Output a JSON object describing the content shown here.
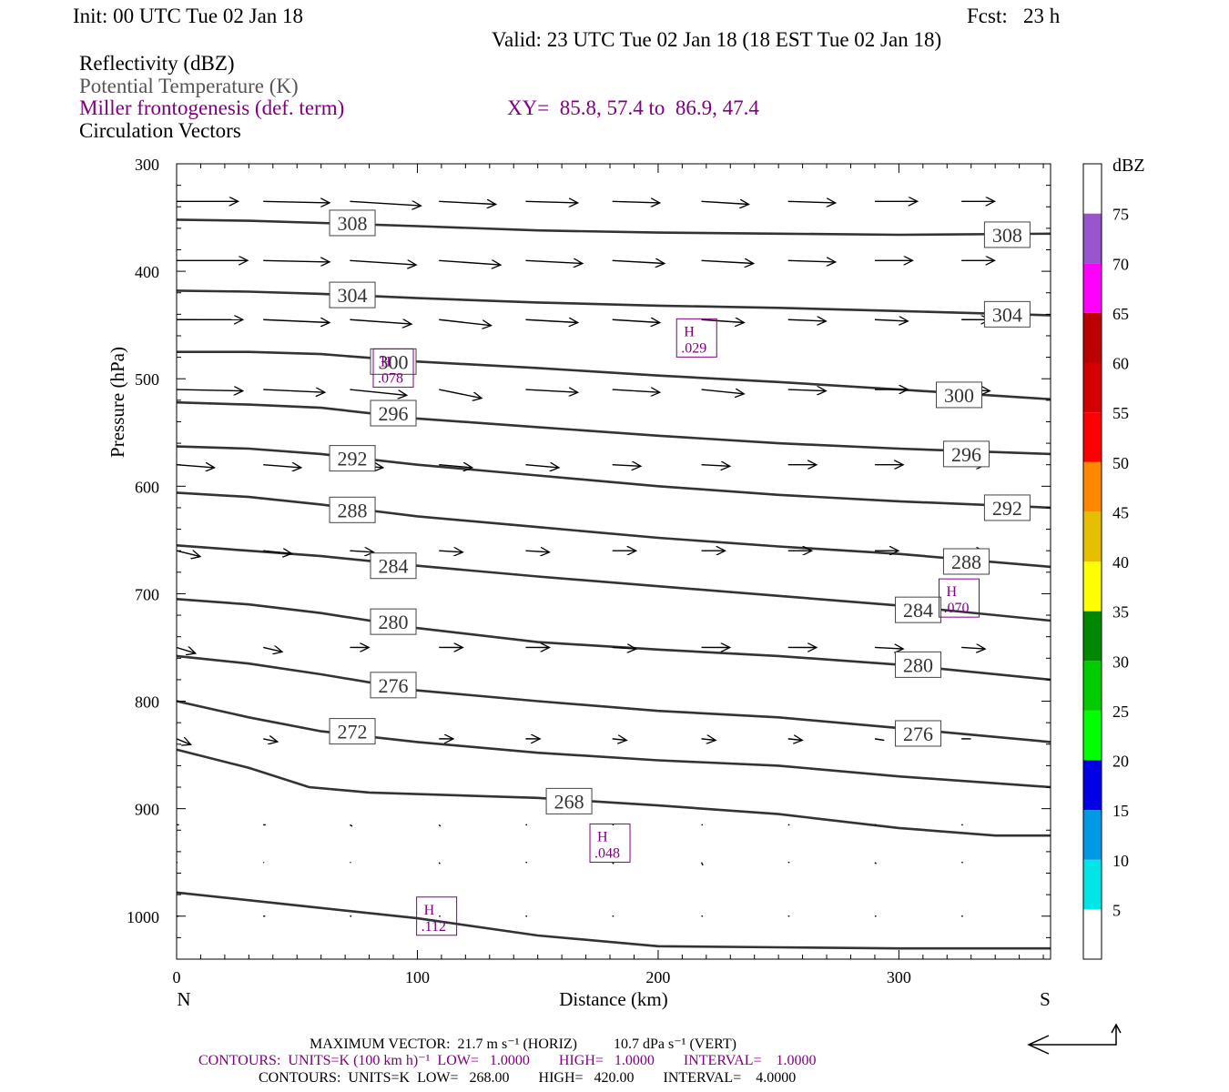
{
  "header": {
    "init": "Init: 00 UTC Tue 02 Jan 18",
    "fcst": "Fcst:   23 h",
    "valid": "Valid: 23 UTC Tue 02 Jan 18 (18 EST Tue 02 Jan 18)",
    "field1": "Reflectivity (dBZ)",
    "field2": "Potential Temperature (K)",
    "field3": "Miller frontogenesis (def. term)",
    "xy": "XY=  85.8, 57.4 to  86.9, 47.4",
    "field4": "Circulation Vectors"
  },
  "axes": {
    "ylabel": "Pressure (hPa)",
    "xlabel": "Distance (km)",
    "left_end": "N",
    "right_end": "S",
    "yticks": [
      "300",
      "400",
      "500",
      "600",
      "700",
      "800",
      "900",
      "1000"
    ],
    "xticks": [
      "0",
      "100",
      "200",
      "300"
    ]
  },
  "colorbar": {
    "unit": "dBZ",
    "labels": [
      "75",
      "70",
      "65",
      "60",
      "55",
      "50",
      "45",
      "40",
      "35",
      "30",
      "25",
      "20",
      "15",
      "10",
      "5"
    ],
    "colors": [
      "#ffffff",
      "#00e5e5",
      "#0099e6",
      "#0000e6",
      "#00ff00",
      "#00cc00",
      "#008800",
      "#ffff00",
      "#e6c000",
      "#ff8800",
      "#ff0000",
      "#d40000",
      "#bb0000",
      "#ff00ff",
      "#9955cc",
      "#ffffff"
    ]
  },
  "footer": {
    "line1": "MAXIMUM VECTOR:  21.7 m s⁻¹ (HORIZ)          10.7 dPa s⁻¹ (VERT)",
    "line2": "CONTOURS:  UNITS=K (100 km h)⁻¹  LOW=   1.0000        HIGH=   1.0000        INTERVAL=    1.0000",
    "line3": "CONTOURS:  UNITS=K  LOW=   268.00        HIGH=   420.00        INTERVAL=    4.0000"
  },
  "chart_data": {
    "type": "cross-section",
    "x_range_km": [
      0,
      363
    ],
    "y_range_hpa": [
      300,
      1040
    ],
    "y_scale": "linear, inverted",
    "theta_contours": [
      {
        "label": "308",
        "x": [
          0,
          30,
          60,
          100,
          150,
          200,
          250,
          300,
          363
        ],
        "y": [
          352,
          353,
          355,
          358,
          362,
          364,
          365,
          366,
          365
        ],
        "labels": [
          [
            73,
            355
          ],
          [
            345,
            366
          ]
        ]
      },
      {
        "label": "304",
        "x": [
          0,
          30,
          60,
          100,
          150,
          200,
          250,
          300,
          363
        ],
        "y": [
          418,
          419,
          421,
          425,
          429,
          432,
          434,
          437,
          441
        ],
        "labels": [
          [
            73,
            422
          ],
          [
            345,
            440
          ]
        ]
      },
      {
        "label": "300",
        "x": [
          0,
          30,
          60,
          100,
          150,
          200,
          250,
          300,
          363
        ],
        "y": [
          475,
          475,
          477,
          484,
          490,
          497,
          503,
          510,
          519
        ],
        "labels": [
          [
            90,
            484
          ],
          [
            325,
            515
          ]
        ]
      },
      {
        "label": "296",
        "x": [
          0,
          30,
          60,
          100,
          150,
          200,
          250,
          300,
          363
        ],
        "y": [
          522,
          524,
          527,
          537,
          545,
          553,
          560,
          565,
          570
        ],
        "labels": [
          [
            90,
            532
          ],
          [
            328,
            570
          ]
        ]
      },
      {
        "label": "292",
        "x": [
          0,
          30,
          60,
          100,
          150,
          200,
          250,
          300,
          363
        ],
        "y": [
          563,
          565,
          570,
          580,
          590,
          600,
          608,
          614,
          620
        ],
        "labels": [
          [
            73,
            574
          ],
          [
            345,
            620
          ]
        ]
      },
      {
        "label": "288",
        "x": [
          0,
          30,
          60,
          100,
          150,
          200,
          250,
          300,
          363
        ],
        "y": [
          606,
          610,
          617,
          628,
          638,
          648,
          656,
          663,
          675
        ],
        "labels": [
          [
            73,
            622
          ],
          [
            328,
            670
          ]
        ]
      },
      {
        "label": "284",
        "x": [
          0,
          30,
          60,
          100,
          150,
          200,
          250,
          300,
          363
        ],
        "y": [
          655,
          660,
          665,
          674,
          684,
          693,
          702,
          711,
          725
        ],
        "labels": [
          [
            90,
            674
          ],
          [
            308,
            715
          ]
        ]
      },
      {
        "label": "280",
        "x": [
          0,
          30,
          60,
          100,
          150,
          200,
          250,
          300,
          363
        ],
        "y": [
          705,
          710,
          718,
          732,
          745,
          752,
          758,
          766,
          780
        ],
        "labels": [
          [
            90,
            726
          ],
          [
            308,
            766
          ]
        ]
      },
      {
        "label": "276",
        "x": [
          0,
          30,
          60,
          100,
          150,
          200,
          250,
          300,
          363
        ],
        "y": [
          758,
          765,
          775,
          790,
          800,
          809,
          815,
          825,
          838
        ],
        "labels": [
          [
            90,
            785
          ],
          [
            308,
            830
          ]
        ]
      },
      {
        "label": "272",
        "x": [
          0,
          30,
          60,
          100,
          150,
          200,
          250,
          300,
          363
        ],
        "y": [
          800,
          815,
          828,
          838,
          848,
          855,
          860,
          870,
          880
        ],
        "labels": [
          [
            73,
            828
          ]
        ]
      },
      {
        "label": "268",
        "x": [
          0,
          30,
          55,
          80,
          150,
          200,
          250,
          300,
          340,
          363
        ],
        "y": [
          845,
          862,
          880,
          885,
          890,
          897,
          905,
          918,
          925,
          925
        ],
        "labels": [
          [
            163,
            893
          ]
        ]
      },
      {
        "label": "",
        "x": [
          0,
          50,
          100,
          150,
          200,
          250,
          300,
          363
        ],
        "y": [
          978,
          990,
          1002,
          1018,
          1028,
          1029,
          1030,
          1030
        ],
        "labels": []
      }
    ],
    "frontogenesis_maxima": [
      {
        "label": "H",
        "value": ".078",
        "x": 90,
        "y": 490
      },
      {
        "label": "H",
        "value": ".029",
        "x": 216,
        "y": 462
      },
      {
        "label": "H",
        "value": ".070",
        "x": 325,
        "y": 704
      },
      {
        "label": "H",
        "value": ".048",
        "x": 180,
        "y": 932
      },
      {
        "label": "H",
        "value": ".112",
        "x": 108,
        "y": 1000
      }
    ],
    "vector_x_km": [
      0,
      36,
      72,
      109,
      145,
      181,
      218,
      254,
      290,
      326
    ],
    "vector_levels_hpa": [
      335,
      390,
      445,
      510,
      580,
      660,
      750,
      835,
      915,
      950,
      1000
    ],
    "vector_u": [
      [
        13,
        14,
        15,
        12,
        11,
        10,
        10,
        10,
        9,
        7
      ],
      [
        15,
        14,
        14,
        13,
        12,
        11,
        11,
        10,
        8,
        7
      ],
      [
        14,
        14,
        13,
        11,
        11,
        10,
        9,
        8,
        7,
        6
      ],
      [
        14,
        13,
        12,
        9,
        11,
        10,
        9,
        8,
        7,
        6
      ],
      [
        8,
        8,
        7,
        7,
        7,
        6,
        6,
        6,
        6,
        5
      ],
      [
        5,
        6,
        5,
        5,
        5,
        5,
        5,
        5,
        5,
        5
      ],
      [
        4,
        4,
        4,
        5,
        5,
        5,
        6,
        6,
        6,
        5
      ],
      [
        3,
        3,
        3,
        3,
        3,
        3,
        3,
        3,
        2,
        2
      ],
      [
        0.5,
        0.5,
        0.5,
        0.3,
        0.3,
        0.3,
        0.3,
        0.3,
        0.3,
        0.3
      ],
      [
        0.2,
        0.2,
        0.2,
        0.2,
        0.3,
        0.3,
        0.3,
        0.3,
        0.3,
        0.3
      ],
      [
        0.4,
        0.4,
        0.3,
        0.3,
        0.3,
        0.3,
        0.3,
        0.3,
        0.3,
        0.3
      ]
    ],
    "vector_w": [
      [
        0,
        1,
        3,
        2,
        1,
        1,
        2,
        1,
        0,
        0
      ],
      [
        0,
        1,
        3,
        3,
        2,
        2,
        2,
        1,
        0,
        0
      ],
      [
        0,
        2,
        3,
        4,
        2,
        2,
        2,
        1,
        1,
        0
      ],
      [
        1,
        2,
        4,
        6,
        2,
        2,
        3,
        1,
        0,
        1
      ],
      [
        2,
        2,
        2,
        2,
        2,
        1,
        1,
        0,
        0,
        0
      ],
      [
        4,
        2,
        1,
        1,
        1,
        0,
        0,
        0,
        0,
        1
      ],
      [
        4,
        3,
        0,
        0,
        0,
        1,
        0,
        0,
        1,
        1
      ],
      [
        4,
        2,
        0,
        0,
        0,
        1,
        1,
        1,
        1,
        0
      ],
      [
        0,
        0,
        1,
        1,
        0,
        0,
        0,
        0,
        0,
        0
      ],
      [
        0,
        0,
        0,
        1,
        0,
        1,
        2,
        0,
        1,
        0
      ],
      [
        0,
        0,
        0,
        0,
        0,
        0,
        0,
        0,
        0,
        0
      ]
    ]
  }
}
